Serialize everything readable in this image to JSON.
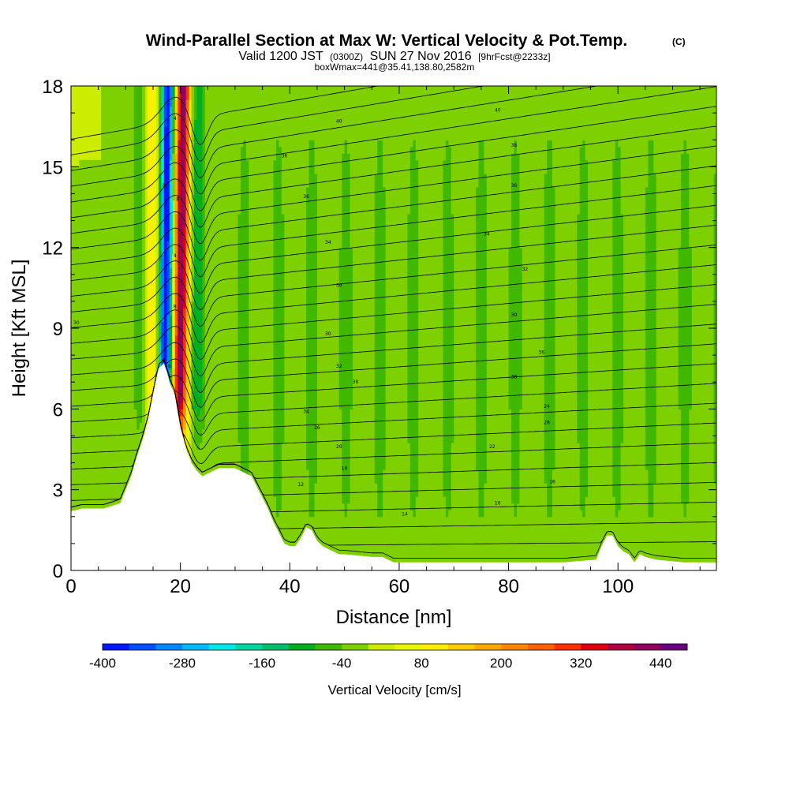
{
  "chart_data": {
    "type": "heatmap",
    "title": "Wind-Parallel Section at Max W: Vertical Velocity & Pot.Temp.",
    "title_mark": "(C)",
    "subtitle": {
      "valid_prefix": "Valid 1200 JST",
      "utc": "(0300Z)",
      "date": "SUN 27 Nov 2016",
      "forecast": "[9hrFcst@2233z]",
      "box": "boxWmax=441@35.41,138.80,2582m"
    },
    "xlabel": "Distance [nm]",
    "ylabel": "Height [Kft MSL]",
    "xlim": [
      0,
      118
    ],
    "ylim": [
      0,
      18
    ],
    "x_ticks": [
      "0",
      "20",
      "40",
      "60",
      "80",
      "100"
    ],
    "x_tick_values": [
      0,
      20,
      40,
      60,
      80,
      100
    ],
    "y_ticks": [
      "0",
      "3",
      "6",
      "9",
      "12",
      "15",
      "18"
    ],
    "y_tick_values": [
      0,
      3,
      6,
      9,
      12,
      15,
      18
    ],
    "colorbar": {
      "label": "Vertical Velocity [cm/s]",
      "min": -400,
      "max": 480,
      "step": 40,
      "tick_labels": [
        "-400",
        "-280",
        "-160",
        "-40",
        "80",
        "200",
        "320",
        "440"
      ],
      "tick_values": [
        -400,
        -280,
        -160,
        -40,
        80,
        200,
        320,
        440
      ],
      "colors": [
        "#0019ff",
        "#0050ff",
        "#0088ff",
        "#00bbff",
        "#00e8e8",
        "#00d8a0",
        "#00c070",
        "#00b020",
        "#40b800",
        "#7fd000",
        "#ccec00",
        "#e8f800",
        "#ffee00",
        "#ffcc00",
        "#ffaa00",
        "#ff8800",
        "#ff6000",
        "#ff3000",
        "#e00010",
        "#b00040",
        "#900060",
        "#6a0080"
      ]
    },
    "terrain_profile": {
      "x": [
        0,
        2,
        6,
        9,
        10,
        11,
        12,
        13,
        14,
        15,
        16,
        17,
        17.5,
        18,
        19,
        20,
        21,
        22,
        23,
        24,
        25,
        27,
        30,
        33,
        34,
        35,
        36,
        37,
        38,
        39,
        40,
        41,
        42,
        43,
        44,
        45,
        46,
        47,
        48,
        49,
        50,
        55,
        57,
        58,
        59,
        60,
        62,
        70,
        80,
        90,
        96,
        97,
        98,
        99,
        100,
        101,
        102,
        103,
        104,
        105,
        107,
        112,
        118
      ],
      "height_kft": [
        2.2,
        2.3,
        2.3,
        2.5,
        3.0,
        3.5,
        4.2,
        4.8,
        5.5,
        6.5,
        7.5,
        7.7,
        7.4,
        7.0,
        6.5,
        5.3,
        4.5,
        4.0,
        3.7,
        3.5,
        3.6,
        3.8,
        3.8,
        3.5,
        3.1,
        2.7,
        2.3,
        1.8,
        1.4,
        1.0,
        0.9,
        0.9,
        1.2,
        1.6,
        1.5,
        1.1,
        0.9,
        0.8,
        0.7,
        0.6,
        0.6,
        0.5,
        0.5,
        0.4,
        0.3,
        0.3,
        0.3,
        0.3,
        0.3,
        0.3,
        0.4,
        0.9,
        1.3,
        1.3,
        0.9,
        0.7,
        0.6,
        0.3,
        0.6,
        0.5,
        0.4,
        0.3,
        0.3
      ]
    },
    "theta_contours": {
      "levels_c": [
        12,
        14,
        16,
        18,
        20,
        22,
        24,
        26,
        28,
        30,
        32,
        34,
        36,
        38,
        40,
        42,
        44,
        46,
        48,
        50,
        52,
        54,
        56,
        58,
        60,
        62,
        64,
        66
      ],
      "labels": [
        {
          "x": 42,
          "y": 3.2,
          "text": "12"
        },
        {
          "x": 61,
          "y": 2.1,
          "text": "14"
        },
        {
          "x": 78,
          "y": 2.5,
          "text": "16"
        },
        {
          "x": 50,
          "y": 3.8,
          "text": "18"
        },
        {
          "x": 88,
          "y": 3.3,
          "text": "16"
        },
        {
          "x": 49,
          "y": 4.6,
          "text": "20"
        },
        {
          "x": 77,
          "y": 4.6,
          "text": "22"
        },
        {
          "x": 45,
          "y": 5.3,
          "text": "26"
        },
        {
          "x": 87,
          "y": 5.5,
          "text": "28"
        },
        {
          "x": 43,
          "y": 5.9,
          "text": "34"
        },
        {
          "x": 87,
          "y": 6.1,
          "text": "24"
        },
        {
          "x": 52,
          "y": 7.0,
          "text": "38"
        },
        {
          "x": 81,
          "y": 7.2,
          "text": "38"
        },
        {
          "x": 49,
          "y": 7.6,
          "text": "32"
        },
        {
          "x": 86,
          "y": 8.1,
          "text": "36"
        },
        {
          "x": 47,
          "y": 8.8,
          "text": "30"
        },
        {
          "x": 81,
          "y": 9.5,
          "text": "30"
        },
        {
          "x": 1,
          "y": 9.2,
          "text": "30"
        },
        {
          "x": 49,
          "y": 10.6,
          "text": "30"
        },
        {
          "x": 83,
          "y": 11.2,
          "text": "32"
        },
        {
          "x": 47,
          "y": 12.2,
          "text": "34"
        },
        {
          "x": 76,
          "y": 12.5,
          "text": "34"
        },
        {
          "x": 43,
          "y": 13.9,
          "text": "36"
        },
        {
          "x": 81,
          "y": 14.3,
          "text": "36"
        },
        {
          "x": 39,
          "y": 15.4,
          "text": "36"
        },
        {
          "x": 81,
          "y": 15.8,
          "text": "38"
        },
        {
          "x": 49,
          "y": 16.7,
          "text": "40"
        },
        {
          "x": 78,
          "y": 17.1,
          "text": "40"
        }
      ],
      "jet_labels": [
        {
          "x": 19,
          "y": 16.8,
          "text": "4"
        },
        {
          "x": 17,
          "y": 14.3,
          "text": "8"
        },
        {
          "x": 19.5,
          "y": 13.8,
          "text": "8"
        },
        {
          "x": 19,
          "y": 11.7,
          "text": "4"
        },
        {
          "x": 19,
          "y": 9.8,
          "text": "8"
        },
        {
          "x": 17,
          "y": 7.8,
          "text": "8"
        },
        {
          "x": 18,
          "y": 7.6,
          "text": "8"
        },
        {
          "x": 20,
          "y": 7.1,
          "text": "4"
        }
      ]
    }
  }
}
